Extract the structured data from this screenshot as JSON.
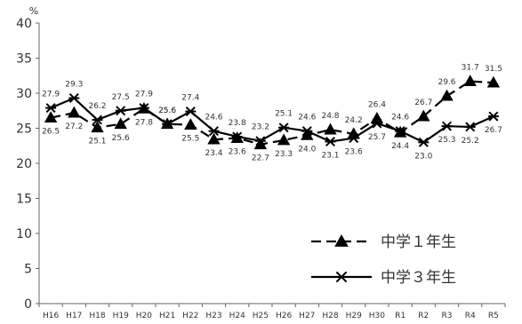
{
  "chart_data": {
    "type": "line",
    "unit_label": "%",
    "categories": [
      "H16",
      "H17",
      "H18",
      "H19",
      "H20",
      "H21",
      "H22",
      "H23",
      "H24",
      "H25",
      "H26",
      "H27",
      "H28",
      "H29",
      "H30",
      "R1",
      "R2",
      "R3",
      "R4",
      "R5"
    ],
    "ylim": [
      0,
      40
    ],
    "yticks": [
      0,
      5,
      10,
      15,
      20,
      25,
      30,
      35,
      40
    ],
    "grid": false,
    "legend_position": "bottom-right",
    "series": [
      {
        "name": "中学１年生",
        "marker": "triangle",
        "line_style": "dashed",
        "color": "#000000",
        "values": [
          26.5,
          27.2,
          25.1,
          25.6,
          27.8,
          25.6,
          25.5,
          23.4,
          23.6,
          22.7,
          23.3,
          24.0,
          24.8,
          24.2,
          26.4,
          24.4,
          26.7,
          29.6,
          31.7,
          31.5
        ]
      },
      {
        "name": "中学３年生",
        "marker": "asterisk",
        "line_style": "solid",
        "color": "#000000",
        "values": [
          27.9,
          29.3,
          26.2,
          27.5,
          27.9,
          25.6,
          27.4,
          24.6,
          23.8,
          23.2,
          25.1,
          24.6,
          23.1,
          23.6,
          25.7,
          24.6,
          23.0,
          25.3,
          25.2,
          26.7
        ]
      }
    ]
  }
}
